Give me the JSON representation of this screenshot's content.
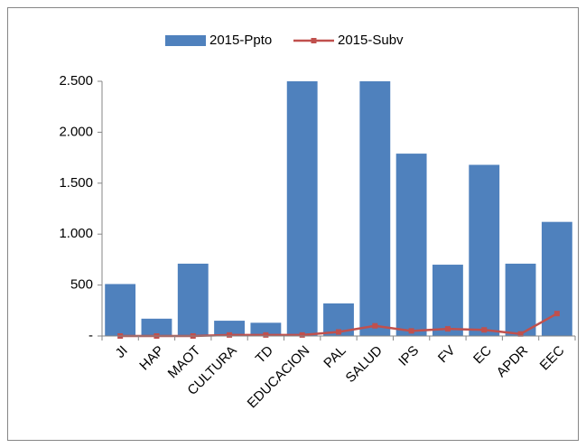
{
  "chart_data": {
    "type": "bar",
    "categories": [
      "JI",
      "HAP",
      "MAOT",
      "CULTURA",
      "TD",
      "EDUCACION",
      "PAL",
      "SALUD",
      "IPS",
      "FV",
      "EC",
      "APDR",
      "EEC"
    ],
    "series": [
      {
        "name": "2015-Ppto",
        "type": "bar",
        "color": "#4f81bd",
        "values": [
          510,
          170,
          710,
          150,
          130,
          2500,
          320,
          2500,
          1790,
          700,
          1680,
          710,
          1120
        ]
      },
      {
        "name": "2015-Subv",
        "type": "line",
        "color": "#c0504d",
        "values": [
          0,
          0,
          0,
          10,
          10,
          10,
          40,
          100,
          50,
          70,
          60,
          20,
          220
        ]
      }
    ],
    "ylim": [
      0,
      2500
    ],
    "yticks": [
      {
        "value": 0,
        "label": "-"
      },
      500,
      {
        "value": 1000,
        "label": "1.000"
      },
      {
        "value": 1500,
        "label": "1.500"
      },
      {
        "value": 2000,
        "label": "2.000"
      },
      {
        "value": 2500,
        "label": "2.500"
      }
    ],
    "legend": "top"
  }
}
